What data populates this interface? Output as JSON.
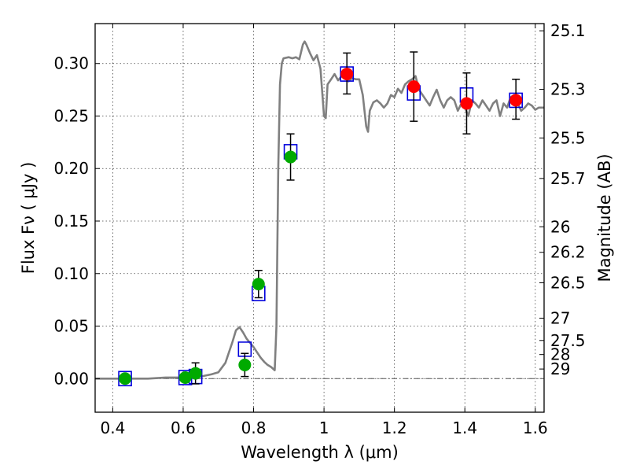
{
  "chart_data": {
    "type": "scatter",
    "title": "",
    "xlabel": "Wavelength  λ (μm)",
    "ylabel": "Flux  Fν  ( μJy )",
    "y2label": "Magnitude (AB)",
    "xlim": [
      0.35,
      1.625
    ],
    "ylim": [
      -0.032,
      0.338
    ],
    "grid": true,
    "x_ticks": [
      0.4,
      0.6,
      0.8,
      1.0,
      1.2,
      1.4,
      1.6
    ],
    "x_tick_labels": [
      "0.4",
      "0.6",
      "0.8",
      "1",
      "1.2",
      "1.4",
      "1.6"
    ],
    "y_ticks": [
      0.0,
      0.05,
      0.1,
      0.15,
      0.2,
      0.25,
      0.3
    ],
    "y_tick_labels": [
      "0.00",
      "0.05",
      "0.10",
      "0.15",
      "0.20",
      "0.25",
      "0.30"
    ],
    "mag_ticks": [
      25.1,
      25.3,
      25.5,
      25.7,
      26,
      26.2,
      26.5,
      27,
      27.5,
      28,
      29
    ],
    "mag_tick_labels": [
      "25.1",
      "25.3",
      "25.5",
      "25.7",
      "26",
      "26.2",
      "26.5",
      "27",
      "27.5",
      "28",
      "29"
    ],
    "colors": {
      "model_spectrum": "#808080",
      "model_photometry": "#0000dd",
      "observed_optical": "#00aa00",
      "observed_nir": "#ff0000",
      "error_bars": "#000000",
      "zero_line": "#555555"
    },
    "series": [
      {
        "type": "line",
        "x": [
          0.35,
          0.45,
          0.5,
          0.55,
          0.58,
          0.6,
          0.62,
          0.65,
          0.68,
          0.7,
          0.72,
          0.74,
          0.75,
          0.76,
          0.77,
          0.78,
          0.79,
          0.8,
          0.82,
          0.83,
          0.84,
          0.85,
          0.86,
          0.865,
          0.87,
          0.875,
          0.88,
          0.885,
          0.9,
          0.91,
          0.92,
          0.93,
          0.94,
          0.945,
          0.95,
          0.96,
          0.97,
          0.98,
          0.99,
          1.0,
          1.005,
          1.01,
          1.02,
          1.03,
          1.04,
          1.05,
          1.06,
          1.07,
          1.08,
          1.09,
          1.1,
          1.11,
          1.12,
          1.125,
          1.13,
          1.14,
          1.15,
          1.16,
          1.17,
          1.18,
          1.19,
          1.2,
          1.21,
          1.22,
          1.23,
          1.24,
          1.25,
          1.26,
          1.27,
          1.28,
          1.29,
          1.3,
          1.31,
          1.32,
          1.33,
          1.34,
          1.35,
          1.36,
          1.37,
          1.38,
          1.39,
          1.4,
          1.41,
          1.42,
          1.43,
          1.44,
          1.45,
          1.46,
          1.47,
          1.48,
          1.49,
          1.5,
          1.51,
          1.52,
          1.53,
          1.54,
          1.55,
          1.56,
          1.57,
          1.58,
          1.59,
          1.6,
          1.61,
          1.625
        ],
        "y": [
          0.0,
          0.0,
          0.0,
          0.001,
          0.001,
          0.001,
          0.002,
          0.002,
          0.004,
          0.006,
          0.015,
          0.035,
          0.046,
          0.049,
          0.044,
          0.038,
          0.034,
          0.03,
          0.02,
          0.016,
          0.013,
          0.011,
          0.008,
          0.05,
          0.2,
          0.28,
          0.3,
          0.305,
          0.306,
          0.305,
          0.306,
          0.304,
          0.318,
          0.321,
          0.318,
          0.31,
          0.303,
          0.308,
          0.295,
          0.25,
          0.248,
          0.28,
          0.285,
          0.29,
          0.284,
          0.288,
          0.29,
          0.283,
          0.286,
          0.285,
          0.285,
          0.27,
          0.24,
          0.235,
          0.255,
          0.263,
          0.265,
          0.262,
          0.258,
          0.262,
          0.27,
          0.268,
          0.276,
          0.272,
          0.28,
          0.283,
          0.285,
          0.288,
          0.275,
          0.27,
          0.265,
          0.26,
          0.268,
          0.275,
          0.265,
          0.258,
          0.265,
          0.268,
          0.265,
          0.255,
          0.262,
          0.258,
          0.25,
          0.265,
          0.262,
          0.258,
          0.265,
          0.26,
          0.255,
          0.262,
          0.265,
          0.25,
          0.262,
          0.258,
          0.268,
          0.27,
          0.262,
          0.255,
          0.258,
          0.262,
          0.26,
          0.256,
          0.258,
          0.258
        ]
      },
      {
        "type": "scatter",
        "x": [
          0.435,
          0.606,
          0.635,
          0.775,
          0.814,
          0.905,
          1.065,
          1.255,
          1.405,
          1.545
        ],
        "y": [
          0.0,
          0.001,
          0.002,
          0.028,
          0.081,
          0.216,
          0.29,
          0.272,
          0.27,
          0.265
        ]
      },
      {
        "type": "scatter",
        "x": [
          0.435,
          0.606,
          0.635,
          0.775,
          0.814,
          0.905
        ],
        "y": [
          0.0,
          0.001,
          0.005,
          0.013,
          0.09,
          0.211
        ],
        "err_low": [
          0.0,
          0.0,
          0.01,
          0.011,
          0.013,
          0.022
        ],
        "err_high": [
          0.0,
          0.0,
          0.01,
          0.011,
          0.013,
          0.022
        ]
      },
      {
        "type": "scatter",
        "x": [
          1.065,
          1.255,
          1.405,
          1.545
        ],
        "y": [
          0.29,
          0.278,
          0.262,
          0.265
        ],
        "err_low": [
          0.019,
          0.033,
          0.029,
          0.018
        ],
        "err_high": [
          0.02,
          0.033,
          0.029,
          0.02
        ]
      }
    ]
  }
}
